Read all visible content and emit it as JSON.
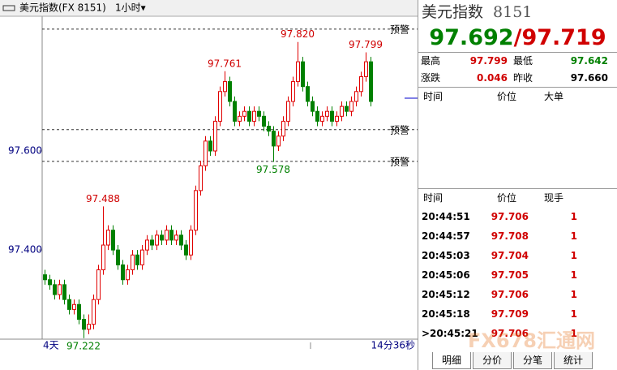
{
  "toolbar": {
    "symbol": "美元指数(FX 8151)",
    "period": "1小时▾"
  },
  "chart_data": {
    "type": "candlestick",
    "up_color": "#e00000",
    "down_color": "#008000",
    "ylim": [
      97.22,
      97.872
    ],
    "yticks": [
      {
        "value": 97.4,
        "label": "97.400"
      },
      {
        "value": 97.6,
        "label": "97.600"
      }
    ],
    "candles": [
      [
        97.35,
        97.36,
        97.33,
        97.34
      ],
      [
        97.34,
        97.35,
        97.32,
        97.33
      ],
      [
        97.33,
        97.34,
        97.3,
        97.31
      ],
      [
        97.31,
        97.34,
        97.3,
        97.33
      ],
      [
        97.33,
        97.34,
        97.29,
        97.3
      ],
      [
        97.3,
        97.31,
        97.27,
        97.28
      ],
      [
        97.28,
        97.3,
        97.27,
        97.29
      ],
      [
        97.29,
        97.3,
        97.25,
        97.26
      ],
      [
        97.26,
        97.27,
        97.222,
        97.24
      ],
      [
        97.24,
        97.27,
        97.23,
        97.25
      ],
      [
        97.25,
        97.31,
        97.24,
        97.3
      ],
      [
        97.3,
        97.37,
        97.29,
        97.36
      ],
      [
        97.36,
        97.488,
        97.35,
        97.41
      ],
      [
        97.41,
        97.45,
        97.4,
        97.44
      ],
      [
        97.44,
        97.45,
        97.39,
        97.4
      ],
      [
        97.4,
        97.41,
        97.36,
        97.37
      ],
      [
        97.37,
        97.38,
        97.33,
        97.34
      ],
      [
        97.34,
        97.37,
        97.33,
        97.36
      ],
      [
        97.36,
        97.4,
        97.35,
        97.39
      ],
      [
        97.39,
        97.4,
        97.36,
        97.37
      ],
      [
        97.37,
        97.41,
        97.36,
        97.4
      ],
      [
        97.4,
        97.43,
        97.39,
        97.42
      ],
      [
        97.42,
        97.43,
        97.4,
        97.41
      ],
      [
        97.41,
        97.44,
        97.4,
        97.43
      ],
      [
        97.43,
        97.44,
        97.41,
        97.42
      ],
      [
        97.42,
        97.45,
        97.41,
        97.44
      ],
      [
        97.44,
        97.45,
        97.41,
        97.42
      ],
      [
        97.42,
        97.44,
        97.41,
        97.43
      ],
      [
        97.43,
        97.44,
        97.4,
        97.41
      ],
      [
        97.41,
        97.42,
        97.38,
        97.39
      ],
      [
        97.39,
        97.45,
        97.38,
        97.44
      ],
      [
        97.44,
        97.53,
        97.43,
        97.52
      ],
      [
        97.52,
        97.58,
        97.51,
        97.57
      ],
      [
        97.57,
        97.63,
        97.56,
        97.62
      ],
      [
        97.62,
        97.63,
        97.59,
        97.6
      ],
      [
        97.6,
        97.67,
        97.59,
        97.66
      ],
      [
        97.66,
        97.73,
        97.65,
        97.72
      ],
      [
        97.72,
        97.761,
        97.71,
        97.74
      ],
      [
        97.74,
        97.75,
        97.69,
        97.7
      ],
      [
        97.7,
        97.71,
        97.65,
        97.66
      ],
      [
        97.66,
        97.68,
        97.65,
        97.67
      ],
      [
        97.67,
        97.69,
        97.66,
        97.68
      ],
      [
        97.68,
        97.69,
        97.65,
        97.66
      ],
      [
        97.66,
        97.69,
        97.65,
        97.68
      ],
      [
        97.68,
        97.69,
        97.66,
        97.67
      ],
      [
        97.67,
        97.68,
        97.64,
        97.65
      ],
      [
        97.65,
        97.66,
        97.63,
        97.64
      ],
      [
        97.64,
        97.65,
        97.578,
        97.61
      ],
      [
        97.61,
        97.64,
        97.6,
        97.63
      ],
      [
        97.63,
        97.67,
        97.62,
        97.66
      ],
      [
        97.66,
        97.71,
        97.65,
        97.7
      ],
      [
        97.7,
        97.75,
        97.69,
        97.74
      ],
      [
        97.74,
        97.82,
        97.73,
        97.78
      ],
      [
        97.78,
        97.79,
        97.72,
        97.73
      ],
      [
        97.73,
        97.74,
        97.69,
        97.7
      ],
      [
        97.7,
        97.71,
        97.67,
        97.68
      ],
      [
        97.68,
        97.69,
        97.65,
        97.66
      ],
      [
        97.66,
        97.68,
        97.65,
        97.67
      ],
      [
        97.67,
        97.69,
        97.66,
        97.68
      ],
      [
        97.68,
        97.69,
        97.65,
        97.66
      ],
      [
        97.66,
        97.68,
        97.65,
        97.67
      ],
      [
        97.67,
        97.7,
        97.66,
        97.69
      ],
      [
        97.69,
        97.7,
        97.67,
        97.68
      ],
      [
        97.68,
        97.71,
        97.67,
        97.7
      ],
      [
        97.7,
        97.73,
        97.69,
        97.72
      ],
      [
        97.72,
        97.76,
        97.71,
        97.75
      ],
      [
        97.75,
        97.799,
        97.74,
        97.78
      ],
      [
        97.78,
        97.79,
        97.69,
        97.7
      ]
    ],
    "extremes": [
      97.222,
      97.488,
      97.761,
      97.578,
      {
        "value": 97.82,
        "label": "97.820"
      },
      97.799
    ],
    "alerts": [
      {
        "value": 97.846,
        "label": "预警"
      },
      {
        "value": 97.643,
        "label": "预警"
      },
      {
        "value": 97.579,
        "label": "预警"
      }
    ],
    "x_start_label": "4天",
    "countdown": "14分36秒"
  },
  "panel": {
    "name": "美元指数",
    "code": "8151",
    "bid": "97.692",
    "sep": "/",
    "ask": "97.719",
    "stats": [
      [
        "最高",
        "97.799",
        "最低",
        "97.642"
      ],
      [
        "涨跌",
        "0.046",
        "昨收",
        "97.660"
      ]
    ],
    "big_orders_header": [
      "时间",
      "价位",
      "大单"
    ],
    "ticks_header": [
      "时间",
      "价位",
      "现手"
    ],
    "ticks": [
      [
        "20:44:51",
        "97.706",
        "1"
      ],
      [
        "20:44:57",
        "97.708",
        "1"
      ],
      [
        "20:45:03",
        "97.704",
        "1"
      ],
      [
        "20:45:06",
        "97.705",
        "1"
      ],
      [
        "20:45:12",
        "97.706",
        "1"
      ],
      [
        "20:45:18",
        "97.709",
        "1"
      ],
      [
        ">20:45:21",
        "97.706",
        "1"
      ]
    ],
    "tabs": [
      "明细",
      "分价",
      "分笔",
      "统计"
    ],
    "watermark": "FX678汇通网"
  }
}
